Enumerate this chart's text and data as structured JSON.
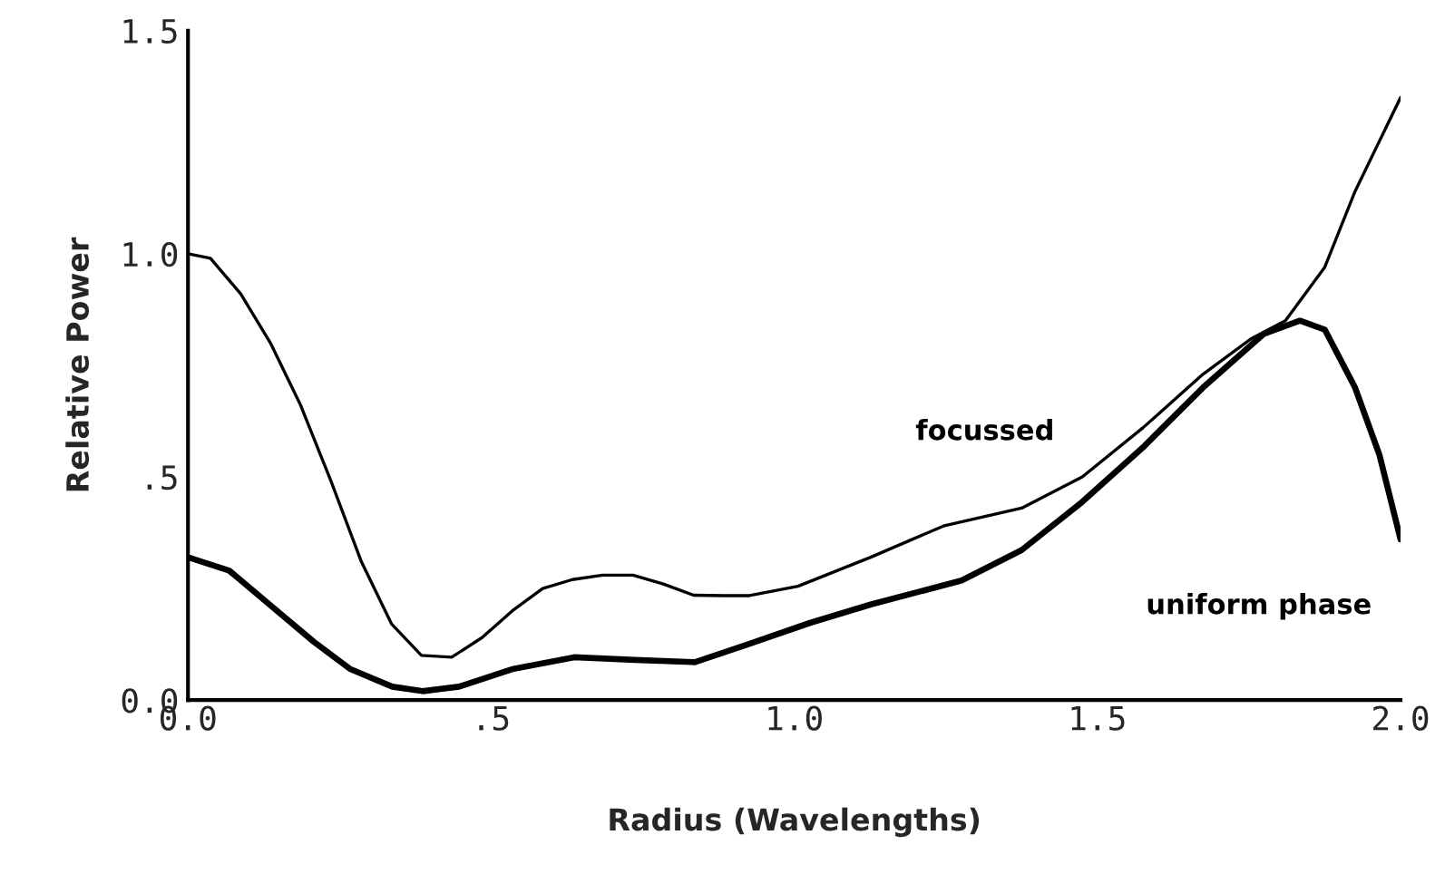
{
  "chart_data": {
    "type": "line",
    "xlabel": "Radius (Wavelengths)",
    "ylabel": "Relative Power",
    "xlim": [
      0,
      2.0
    ],
    "ylim": [
      0,
      1.5
    ],
    "xticks": [
      {
        "value": 0,
        "label": "0.0"
      },
      {
        "value": 0.5,
        "label": ".5"
      },
      {
        "value": 1.0,
        "label": "1.0"
      },
      {
        "value": 1.5,
        "label": "1.5"
      },
      {
        "value": 2.0,
        "label": "2.0"
      }
    ],
    "yticks": [
      {
        "value": 0,
        "label": "0.0"
      },
      {
        "value": 0.5,
        "label": ".5"
      },
      {
        "value": 1.0,
        "label": "1.0"
      },
      {
        "value": 1.5,
        "label": "1.5"
      }
    ],
    "grid": false,
    "series": [
      {
        "name": "focussed",
        "color": "#000000",
        "x": [
          0,
          0.037,
          0.087,
          0.136,
          0.186,
          0.236,
          0.286,
          0.336,
          0.385,
          0.435,
          0.485,
          0.535,
          0.585,
          0.634,
          0.684,
          0.734,
          0.784,
          0.834,
          0.884,
          0.926,
          1.006,
          1.126,
          1.246,
          1.375,
          1.475,
          1.575,
          1.674,
          1.754,
          1.81,
          1.875,
          1.925,
          2.0
        ],
        "values": [
          1.0,
          0.99,
          0.91,
          0.8,
          0.66,
          0.49,
          0.31,
          0.17,
          0.1,
          0.096,
          0.14,
          0.2,
          0.25,
          0.27,
          0.28,
          0.28,
          0.26,
          0.235,
          0.234,
          0.234,
          0.255,
          0.32,
          0.39,
          0.43,
          0.5,
          0.61,
          0.73,
          0.81,
          0.85,
          0.97,
          1.14,
          1.35
        ]
      },
      {
        "name": "uniform phase",
        "color": "#000000",
        "x": [
          0,
          0.068,
          0.138,
          0.208,
          0.267,
          0.337,
          0.387,
          0.447,
          0.537,
          0.637,
          0.737,
          0.836,
          0.926,
          1.026,
          1.126,
          1.276,
          1.375,
          1.475,
          1.575,
          1.674,
          1.774,
          1.834,
          1.875,
          1.925,
          1.965,
          2.0
        ],
        "values": [
          0.32,
          0.29,
          0.21,
          0.13,
          0.07,
          0.03,
          0.02,
          0.03,
          0.07,
          0.096,
          0.09,
          0.085,
          0.126,
          0.173,
          0.214,
          0.268,
          0.336,
          0.444,
          0.566,
          0.7,
          0.82,
          0.85,
          0.83,
          0.7,
          0.55,
          0.36
        ]
      }
    ]
  }
}
